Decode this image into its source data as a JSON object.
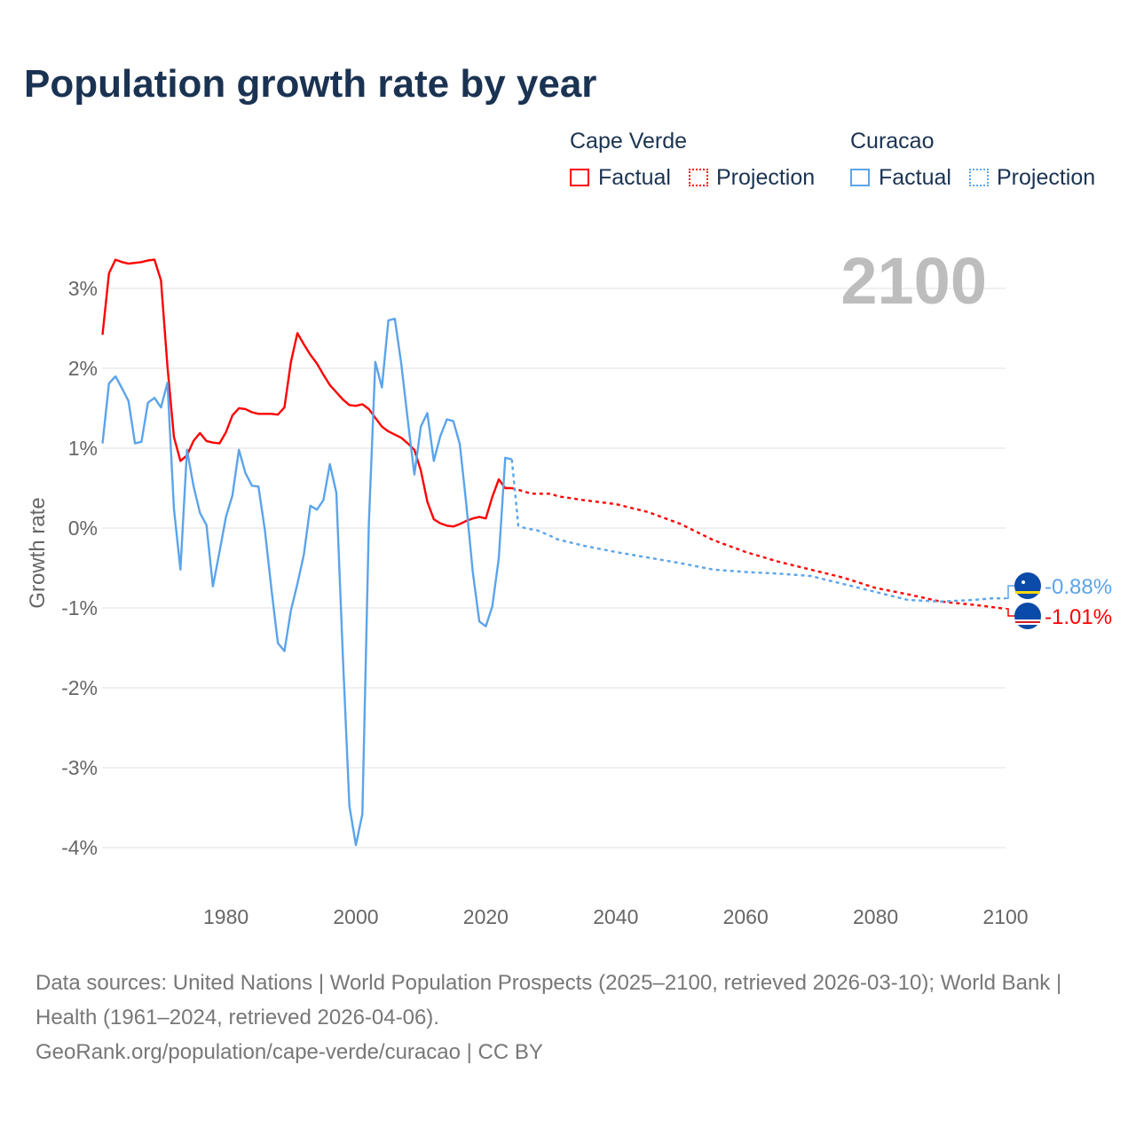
{
  "chart_data": {
    "type": "line",
    "title": "Population growth rate by year",
    "ylabel": "Growth rate",
    "xlabel": "",
    "xlim": [
      1961,
      2100
    ],
    "ylim": [
      -4.5,
      3.5
    ],
    "xticks": [
      1980,
      2000,
      2020,
      2040,
      2060,
      2080,
      2100
    ],
    "xtick_labels": [
      "1980",
      "2000",
      "2020",
      "2040",
      "2060",
      "2080",
      "2100"
    ],
    "yticks": [
      3,
      2,
      1,
      0,
      -1,
      -2,
      -3,
      -4
    ],
    "ytick_labels": [
      "3%",
      "2%",
      "1%",
      "0%",
      "-1%",
      "-2%",
      "-3%",
      "-4%"
    ],
    "grid": true,
    "year_watermark": "2100",
    "legend": {
      "placement": "top-right",
      "groups": [
        {
          "name": "Cape Verde",
          "factual": "Factual",
          "projection": "Projection",
          "color": "#ff0000"
        },
        {
          "name": "Curacao",
          "factual": "Factual",
          "projection": "Projection",
          "color": "#5ba4ea"
        }
      ]
    },
    "series": [
      {
        "name": "Cape Verde",
        "type": "factual",
        "color": "#ff0000",
        "x": [
          1961,
          1962,
          1963,
          1964,
          1965,
          1966,
          1967,
          1968,
          1969,
          1970,
          1971,
          1972,
          1973,
          1974,
          1975,
          1976,
          1977,
          1978,
          1979,
          1980,
          1981,
          1982,
          1983,
          1984,
          1985,
          1986,
          1987,
          1988,
          1989,
          1990,
          1991,
          1992,
          1993,
          1994,
          1995,
          1996,
          1997,
          1998,
          1999,
          2000,
          2001,
          2002,
          2003,
          2004,
          2005,
          2006,
          2007,
          2008,
          2009,
          2010,
          2011,
          2012,
          2013,
          2014,
          2015,
          2016,
          2017,
          2018,
          2019,
          2020,
          2021,
          2022,
          2023,
          2024
        ],
        "y": [
          2.42,
          3.19,
          3.36,
          3.33,
          3.31,
          3.32,
          3.33,
          3.35,
          3.36,
          3.1,
          2.02,
          1.14,
          0.84,
          0.91,
          1.09,
          1.19,
          1.09,
          1.07,
          1.06,
          1.2,
          1.41,
          1.5,
          1.49,
          1.45,
          1.43,
          1.43,
          1.43,
          1.42,
          1.51,
          2.08,
          2.44,
          2.3,
          2.17,
          2.06,
          1.92,
          1.79,
          1.7,
          1.61,
          1.54,
          1.53,
          1.55,
          1.49,
          1.38,
          1.27,
          1.21,
          1.17,
          1.13,
          1.06,
          0.98,
          0.72,
          0.33,
          0.11,
          0.06,
          0.03,
          0.02,
          0.05,
          0.09,
          0.12,
          0.14,
          0.12,
          0.39,
          0.61,
          0.5,
          0.5
        ]
      },
      {
        "name": "Cape Verde",
        "type": "projection",
        "color": "#ff0000",
        "x": [
          2024,
          2025,
          2027,
          2030,
          2031,
          2035,
          2040,
          2045,
          2050,
          2055,
          2060,
          2065,
          2070,
          2075,
          2080,
          2085,
          2090,
          2095,
          2100
        ],
        "y": [
          0.5,
          0.48,
          0.43,
          0.43,
          0.4,
          0.35,
          0.3,
          0.2,
          0.05,
          -0.15,
          -0.3,
          -0.42,
          -0.52,
          -0.62,
          -0.75,
          -0.83,
          -0.92,
          -0.96,
          -1.01
        ]
      },
      {
        "name": "Curacao",
        "type": "factual",
        "color": "#5ba4ea",
        "x": [
          1961,
          1962,
          1963,
          1964,
          1965,
          1966,
          1967,
          1968,
          1969,
          1970,
          1971,
          1972,
          1973,
          1974,
          1975,
          1976,
          1977,
          1978,
          1979,
          1980,
          1981,
          1982,
          1983,
          1984,
          1985,
          1986,
          1987,
          1988,
          1989,
          1990,
          1991,
          1992,
          1993,
          1994,
          1995,
          1996,
          1997,
          1998,
          1999,
          2000,
          2001,
          2002,
          2003,
          2004,
          2005,
          2006,
          2007,
          2008,
          2009,
          2010,
          2011,
          2012,
          2013,
          2014,
          2015,
          2016,
          2017,
          2018,
          2019,
          2020,
          2021,
          2022,
          2023,
          2024
        ],
        "y": [
          1.06,
          1.81,
          1.9,
          1.75,
          1.59,
          1.06,
          1.08,
          1.57,
          1.63,
          1.51,
          1.82,
          0.24,
          -0.52,
          0.98,
          0.53,
          0.19,
          0.04,
          -0.73,
          -0.3,
          0.14,
          0.41,
          0.98,
          0.69,
          0.53,
          0.52,
          -0.03,
          -0.76,
          -1.44,
          -1.54,
          -1.03,
          -0.7,
          -0.33,
          0.28,
          0.23,
          0.35,
          0.8,
          0.44,
          -1.6,
          -3.48,
          -3.97,
          -3.58,
          0.05,
          2.08,
          1.76,
          2.6,
          2.62,
          2.05,
          1.35,
          0.67,
          1.27,
          1.44,
          0.84,
          1.15,
          1.36,
          1.34,
          1.05,
          0.3,
          -0.55,
          -1.17,
          -1.23,
          -0.98,
          -0.38,
          0.88,
          0.86
        ]
      },
      {
        "name": "Curacao",
        "type": "projection",
        "color": "#5ba4ea",
        "x": [
          2024,
          2025,
          2026,
          2028,
          2030,
          2031,
          2035,
          2040,
          2045,
          2050,
          2055,
          2060,
          2065,
          2070,
          2075,
          2080,
          2085,
          2090,
          2095,
          2098,
          2100
        ],
        "y": [
          0.86,
          0.03,
          0.0,
          -0.03,
          -0.1,
          -0.14,
          -0.22,
          -0.3,
          -0.37,
          -0.44,
          -0.52,
          -0.55,
          -0.57,
          -0.6,
          -0.7,
          -0.8,
          -0.9,
          -0.92,
          -0.9,
          -0.88,
          -0.88
        ]
      }
    ],
    "end_labels": [
      {
        "country": "Curacao",
        "value_label": "-0.88%",
        "color": "#5ba4ea"
      },
      {
        "country": "Cape Verde",
        "value_label": "-1.01%",
        "color": "#ff0000"
      }
    ]
  },
  "footer": {
    "sources": "Data sources: United Nations | World Population Prospects (2025–2100, retrieved 2026-03-10); World Bank | Health (1961–2024, retrieved 2026-04-06).",
    "link": "GeoRank.org/population/cape-verde/curacao | CC BY"
  }
}
